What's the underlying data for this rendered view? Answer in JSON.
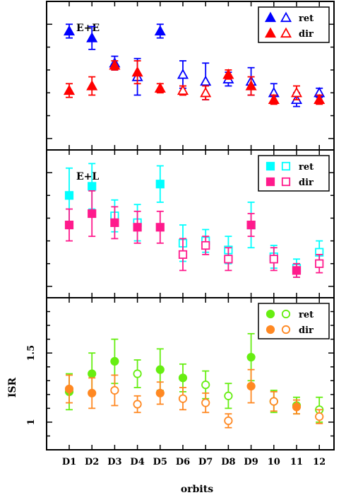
{
  "x_categories": [
    "D1",
    "D2",
    "D3",
    "D4",
    "D5",
    "D6",
    "D7",
    "D8",
    "D9",
    "10",
    "11",
    "12"
  ],
  "xlabel": "orbits",
  "ylabel": "ISR",
  "chart_data": [
    {
      "type": "scatter",
      "panel_label": "E+E",
      "marker": "triangle",
      "legend_position": "top-right",
      "series": [
        {
          "name": "ret",
          "color": "#0000ff",
          "filled": [
            true,
            true,
            false,
            false,
            true,
            false,
            false,
            false,
            false,
            false,
            false,
            false
          ],
          "values": [
            1.47,
            1.44,
            1.33,
            1.27,
            1.47,
            1.28,
            1.25,
            1.26,
            1.25,
            1.2,
            1.17,
            1.2
          ],
          "err": [
            0.03,
            0.05,
            0.03,
            0.08,
            0.03,
            0.06,
            0.08,
            0.03,
            0.06,
            0.04,
            0.03,
            0.02
          ]
        },
        {
          "name": "dir",
          "color": "#ff0000",
          "filled": [
            true,
            true,
            true,
            true,
            true,
            false,
            false,
            true,
            true,
            true,
            false,
            true
          ],
          "values": [
            1.21,
            1.23,
            1.32,
            1.29,
            1.22,
            1.21,
            1.2,
            1.28,
            1.23,
            1.17,
            1.2,
            1.17
          ],
          "err": [
            0.03,
            0.04,
            0.02,
            0.05,
            0.02,
            0.02,
            0.03,
            0.02,
            0.04,
            0.02,
            0.03,
            0.02
          ]
        }
      ]
    },
    {
      "type": "scatter",
      "panel_label": "E+L",
      "marker": "square",
      "legend_position": "top-right",
      "series": [
        {
          "name": "ret",
          "color": "#00ffff",
          "filled": [
            true,
            true,
            false,
            false,
            true,
            false,
            false,
            false,
            false,
            false,
            false,
            false
          ],
          "values": [
            1.4,
            1.44,
            1.31,
            1.28,
            1.45,
            1.19,
            1.2,
            1.16,
            1.27,
            1.13,
            1.08,
            1.15
          ],
          "err": [
            0.12,
            0.1,
            0.07,
            0.08,
            0.08,
            0.08,
            0.05,
            0.06,
            0.1,
            0.05,
            0.04,
            0.05
          ]
        },
        {
          "name": "dir",
          "color": "#ff1a8c",
          "filled": [
            true,
            true,
            true,
            true,
            true,
            false,
            false,
            false,
            true,
            false,
            true,
            false
          ],
          "values": [
            1.27,
            1.32,
            1.28,
            1.26,
            1.26,
            1.14,
            1.18,
            1.12,
            1.27,
            1.12,
            1.07,
            1.1
          ],
          "err": [
            0.07,
            0.1,
            0.07,
            0.07,
            0.07,
            0.07,
            0.04,
            0.05,
            0.05,
            0.05,
            0.03,
            0.04
          ]
        }
      ]
    },
    {
      "type": "scatter",
      "panel_label": "",
      "marker": "circle",
      "legend_position": "top-right",
      "ylim": [
        0.8,
        1.9
      ],
      "yticks": [
        "1",
        "1.5"
      ],
      "ytick_values": [
        1,
        1.5
      ],
      "series": [
        {
          "name": "ret",
          "color": "#66ee11",
          "filled": [
            true,
            true,
            true,
            false,
            true,
            true,
            false,
            false,
            true,
            false,
            false,
            false
          ],
          "values": [
            1.22,
            1.35,
            1.44,
            1.35,
            1.38,
            1.32,
            1.27,
            1.19,
            1.47,
            1.15,
            1.12,
            1.09
          ],
          "err": [
            0.13,
            0.15,
            0.16,
            0.1,
            0.15,
            0.1,
            0.1,
            0.09,
            0.17,
            0.08,
            0.06,
            0.09
          ]
        },
        {
          "name": "dir",
          "color": "#ff8822",
          "filled": [
            true,
            true,
            false,
            false,
            true,
            false,
            false,
            false,
            true,
            false,
            true,
            false
          ],
          "values": [
            1.24,
            1.21,
            1.23,
            1.13,
            1.21,
            1.17,
            1.14,
            1.01,
            1.26,
            1.15,
            1.11,
            1.04
          ],
          "err": [
            0.1,
            0.11,
            0.11,
            0.06,
            0.08,
            0.08,
            0.07,
            0.05,
            0.12,
            0.07,
            0.05,
            0.05
          ]
        }
      ]
    }
  ]
}
